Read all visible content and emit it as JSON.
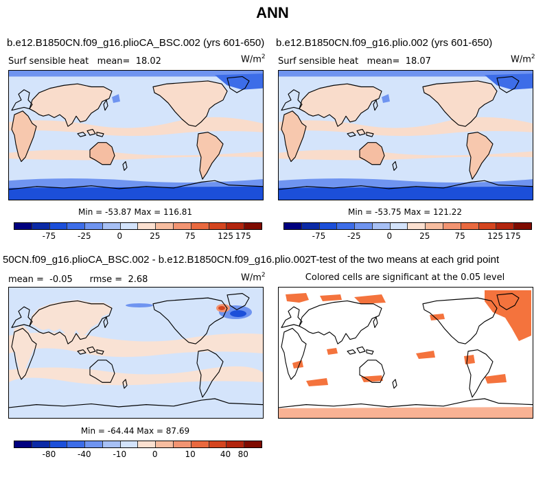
{
  "title": "ANN",
  "panels": {
    "top_left": {
      "title": "b.e12.B1850CN.f09_g16.plioCA_BSC.002 (yrs 601-650)",
      "variable": "Surf sensible heat",
      "mean_label": "mean=",
      "mean_value": "18.02",
      "units": "W/m",
      "units_exp": "2",
      "minmax": "Min = -53.87 Max = 116.81"
    },
    "top_right": {
      "title": "b.e12.B1850CN.f09_g16.plio.002 (yrs 601-650)",
      "variable": "Surf sensible heat",
      "mean_label": "mean=",
      "mean_value": "18.07",
      "units": "W/m",
      "units_exp": "2",
      "minmax": "Min = -53.75 Max = 121.22"
    },
    "bottom_left": {
      "title": "50CN.f09_g16.plioCA_BSC.002 - b.e12.B1850CN.f09_g16.plio.002",
      "mean_label": "mean =",
      "mean_value": "-0.05",
      "rmse_label": "rmse =",
      "rmse_value": "2.68",
      "units": "W/m",
      "units_exp": "2",
      "minmax": "Min = -64.44 Max = 87.69"
    },
    "bottom_right": {
      "title": "T-test of the two means at each grid point",
      "subtitle": "Colored cells are significant at the 0.05 level"
    }
  },
  "colorbars": {
    "field": {
      "colors": [
        "#00007f",
        "#0b2aa6",
        "#1c4fd9",
        "#3d6de8",
        "#6f94f0",
        "#a7c0f5",
        "#d3e3fb",
        "#fbe0d0",
        "#f7bda0",
        "#f29472",
        "#e9693f",
        "#d4451f",
        "#b2250e",
        "#7f0b00"
      ],
      "ticks": [
        "-75",
        "-25",
        "0",
        "25",
        "75",
        "125",
        "175"
      ]
    },
    "diff": {
      "colors": [
        "#00007f",
        "#0b2aa6",
        "#1c4fd9",
        "#3d6de8",
        "#6f94f0",
        "#a7c0f5",
        "#d3e3fb",
        "#fbe0d0",
        "#f7bda0",
        "#f29472",
        "#e9693f",
        "#d4451f",
        "#b2250e",
        "#7f0b00"
      ],
      "ticks": [
        "-80",
        "-40",
        "-10",
        "0",
        "10",
        "40",
        "80"
      ]
    }
  },
  "colors": {
    "ocean": "#d4e4fb",
    "land_warm": "#f9dccb",
    "land_hot": "#f5bea2",
    "cold": "#6f94f0",
    "very_cold": "#3d6de8",
    "significant": "#f4733d",
    "coast": "#000000"
  }
}
